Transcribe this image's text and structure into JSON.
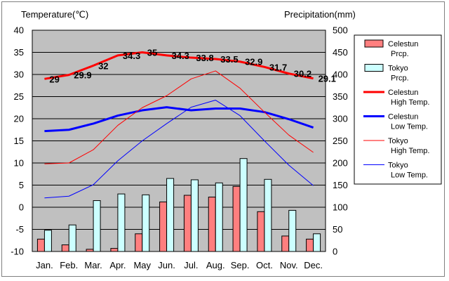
{
  "chart_data": {
    "type": "bar+line",
    "left_axis_title": "Temperature(℃)",
    "right_axis_title": "Precipitation(mm)",
    "categories": [
      "Jan.",
      "Feb.",
      "Mar.",
      "Apr.",
      "May",
      "Jun.",
      "Jul.",
      "Aug.",
      "Sep.",
      "Oct.",
      "Nov.",
      "Dec."
    ],
    "left_ticks": [
      "40",
      "35",
      "30",
      "25",
      "20",
      "15",
      "10",
      "5",
      "0",
      "-5",
      "-10"
    ],
    "right_ticks": [
      "500",
      "450",
      "400",
      "350",
      "300",
      "250",
      "200",
      "150",
      "100",
      "50",
      "0"
    ],
    "ylim_left": [
      -10,
      40
    ],
    "ylim_right": [
      0,
      500
    ],
    "grid": true,
    "legend_position": "right",
    "series": [
      {
        "key": "celestun_prcp",
        "name_line1": "Celestun",
        "name_line2": "Prcp.",
        "kind": "bar",
        "axis": "right",
        "color": "#ff7f7f",
        "values": [
          28,
          15,
          5,
          7,
          40,
          112,
          127,
          123,
          147,
          90,
          35,
          28
        ]
      },
      {
        "key": "tokyo_prcp",
        "name_line1": "Tokyo",
        "name_line2": "Prcp.",
        "kind": "bar",
        "axis": "right",
        "color": "#ccffff",
        "values": [
          48,
          60,
          115,
          130,
          128,
          165,
          162,
          155,
          210,
          163,
          93,
          40
        ]
      },
      {
        "key": "celestun_high",
        "name_line1": "Celestun",
        "name_line2": "High Temp.",
        "kind": "line",
        "axis": "left",
        "color": "#ff0000",
        "width": 3,
        "values": [
          29,
          29.9,
          32,
          34.3,
          35,
          34.3,
          33.8,
          33.5,
          32.9,
          31.7,
          30.2,
          29.1
        ],
        "labels": [
          "29",
          "29.9",
          "32",
          "34.3",
          "35",
          "34.3",
          "33.8",
          "33.5",
          "32.9",
          "31.7",
          "30.2",
          "29.1"
        ]
      },
      {
        "key": "celestun_low",
        "name_line1": "Celestun",
        "name_line2": "Low Temp.",
        "kind": "line",
        "axis": "left",
        "color": "#0000ff",
        "width": 3,
        "values": [
          17.2,
          17.5,
          18.9,
          20.7,
          21.9,
          22.6,
          21.9,
          22.3,
          22.3,
          21.5,
          19.9,
          18
        ]
      },
      {
        "key": "tokyo_high",
        "name_line1": "Tokyo",
        "name_line2": "High Temp.",
        "kind": "line",
        "axis": "left",
        "color": "#ff0000",
        "width": 1,
        "values": [
          9.8,
          10,
          13,
          18.5,
          22.5,
          25.2,
          29,
          30.8,
          26.9,
          21.5,
          16.3,
          12.4
        ]
      },
      {
        "key": "tokyo_low",
        "name_line1": "Tokyo",
        "name_line2": "Low Temp.",
        "kind": "line",
        "axis": "left",
        "color": "#0000ff",
        "width": 1,
        "values": [
          2.1,
          2.5,
          5.1,
          10.5,
          15,
          18.9,
          22.6,
          24.2,
          20.7,
          15,
          9.5,
          4.9
        ]
      }
    ]
  }
}
